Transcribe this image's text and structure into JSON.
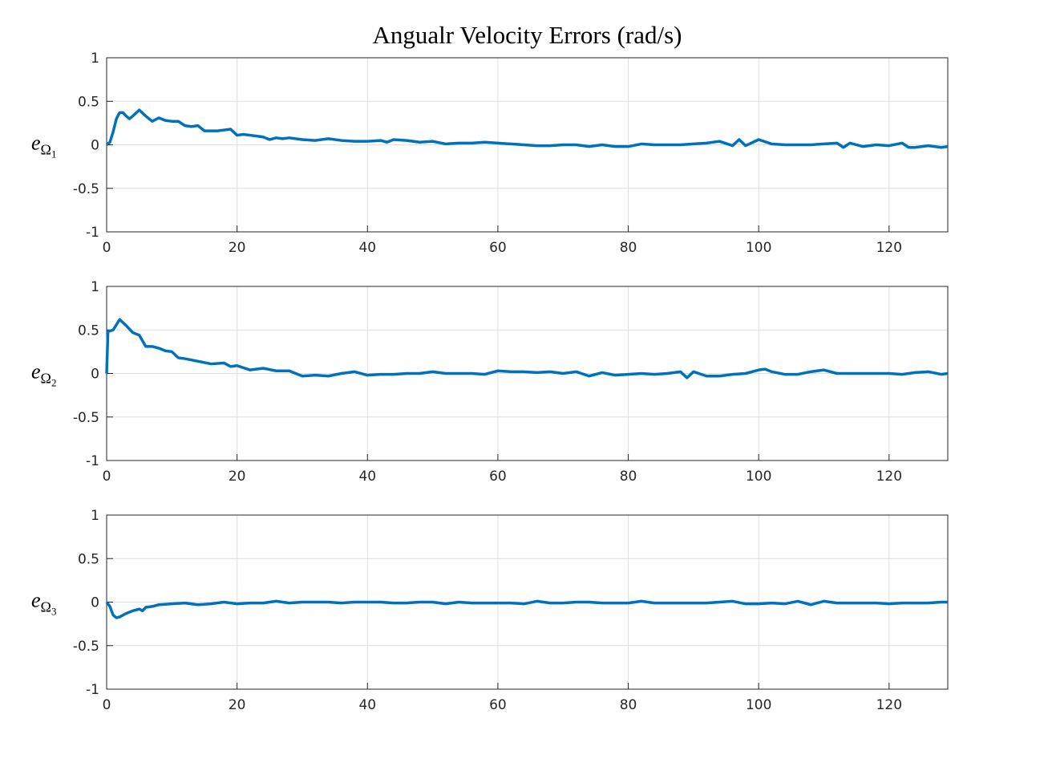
{
  "chart_data": [
    {
      "type": "line",
      "title": "Angualr Velocity Errors (rad/s)",
      "ylabel": [
        "e",
        "Ω",
        "1"
      ],
      "xlim": [
        0,
        129
      ],
      "ylim": [
        -1,
        1
      ],
      "xticks": [
        0,
        20,
        40,
        60,
        80,
        100,
        120
      ],
      "yticks": [
        -1,
        -0.5,
        0,
        0.5,
        1
      ],
      "grid": true,
      "x": [
        0,
        0.5,
        1,
        1.5,
        2,
        2.5,
        3,
        3.5,
        4,
        5,
        6,
        7,
        8,
        9,
        10,
        11,
        12,
        13,
        14,
        15,
        16,
        17,
        18,
        19,
        20,
        21,
        22,
        23,
        24,
        25,
        26,
        27,
        28,
        30,
        32,
        34,
        36,
        38,
        40,
        42,
        43,
        44,
        46,
        48,
        50,
        52,
        54,
        56,
        58,
        60,
        62,
        64,
        66,
        68,
        70,
        72,
        74,
        76,
        78,
        80,
        82,
        84,
        86,
        88,
        90,
        92,
        94,
        96,
        97,
        98,
        100,
        102,
        104,
        106,
        108,
        110,
        112,
        113,
        114,
        116,
        118,
        120,
        122,
        123,
        124,
        126,
        128,
        129
      ],
      "series": [
        {
          "color": "#0072bd",
          "values": [
            0,
            0.03,
            0.15,
            0.3,
            0.37,
            0.37,
            0.33,
            0.3,
            0.33,
            0.4,
            0.33,
            0.27,
            0.31,
            0.28,
            0.27,
            0.27,
            0.22,
            0.21,
            0.22,
            0.16,
            0.16,
            0.16,
            0.17,
            0.18,
            0.11,
            0.12,
            0.11,
            0.1,
            0.09,
            0.06,
            0.08,
            0.07,
            0.08,
            0.06,
            0.05,
            0.07,
            0.05,
            0.04,
            0.04,
            0.05,
            0.03,
            0.06,
            0.05,
            0.03,
            0.04,
            0.01,
            0.02,
            0.02,
            0.03,
            0.02,
            0.01,
            0.0,
            -0.01,
            -0.01,
            0.0,
            0.0,
            -0.02,
            0.0,
            -0.02,
            -0.02,
            0.01,
            0.0,
            0.0,
            0.0,
            0.01,
            0.02,
            0.04,
            -0.01,
            0.06,
            -0.01,
            0.06,
            0.01,
            0.0,
            0.0,
            0.0,
            0.01,
            0.02,
            -0.03,
            0.02,
            -0.02,
            0.0,
            -0.01,
            0.02,
            -0.03,
            -0.03,
            -0.01,
            -0.03,
            -0.02
          ]
        }
      ]
    },
    {
      "type": "line",
      "ylabel": [
        "e",
        "Ω",
        "2"
      ],
      "xlim": [
        0,
        129
      ],
      "ylim": [
        -1,
        1
      ],
      "xticks": [
        0,
        20,
        40,
        60,
        80,
        100,
        120
      ],
      "yticks": [
        -1,
        -0.5,
        0,
        0.5,
        1
      ],
      "grid": true,
      "x": [
        0,
        0.2,
        1,
        2,
        3,
        4,
        5,
        6,
        7,
        8,
        9,
        10,
        11,
        12,
        14,
        16,
        18,
        19,
        20,
        22,
        24,
        26,
        28,
        30,
        32,
        34,
        36,
        38,
        40,
        42,
        44,
        46,
        48,
        50,
        52,
        54,
        56,
        58,
        60,
        62,
        64,
        66,
        68,
        70,
        72,
        74,
        76,
        78,
        80,
        82,
        84,
        86,
        88,
        89,
        90,
        92,
        94,
        96,
        98,
        100,
        101,
        102,
        104,
        106,
        108,
        110,
        112,
        114,
        116,
        118,
        120,
        122,
        124,
        126,
        128,
        129
      ],
      "series": [
        {
          "color": "#0072bd",
          "values": [
            0,
            0.48,
            0.5,
            0.62,
            0.55,
            0.47,
            0.44,
            0.31,
            0.31,
            0.29,
            0.26,
            0.25,
            0.18,
            0.17,
            0.14,
            0.11,
            0.12,
            0.08,
            0.09,
            0.04,
            0.06,
            0.03,
            0.03,
            -0.03,
            -0.02,
            -0.03,
            0.0,
            0.02,
            -0.02,
            -0.01,
            -0.01,
            0.0,
            0.0,
            0.02,
            0.0,
            0.0,
            0.0,
            -0.01,
            0.03,
            0.02,
            0.02,
            0.01,
            0.02,
            0.0,
            0.02,
            -0.03,
            0.01,
            -0.02,
            -0.01,
            0.0,
            -0.01,
            0.0,
            0.02,
            -0.05,
            0.02,
            -0.03,
            -0.03,
            -0.01,
            0.0,
            0.04,
            0.05,
            0.02,
            -0.01,
            -0.01,
            0.02,
            0.04,
            0.0,
            0.0,
            0.0,
            0.0,
            0.0,
            -0.01,
            0.01,
            0.02,
            -0.01,
            0.0
          ]
        }
      ]
    },
    {
      "type": "line",
      "ylabel": [
        "e",
        "Ω",
        "3"
      ],
      "xlim": [
        0,
        129
      ],
      "ylim": [
        -1,
        1
      ],
      "xticks": [
        0,
        20,
        40,
        60,
        80,
        100,
        120
      ],
      "yticks": [
        -1,
        -0.5,
        0,
        0.5,
        1
      ],
      "grid": true,
      "x": [
        0,
        0.5,
        1,
        1.5,
        2,
        3,
        4,
        5,
        5.5,
        6,
        7,
        8,
        10,
        12,
        14,
        16,
        18,
        20,
        22,
        24,
        26,
        28,
        30,
        32,
        34,
        36,
        38,
        40,
        42,
        44,
        46,
        48,
        50,
        52,
        54,
        56,
        58,
        60,
        62,
        64,
        66,
        68,
        70,
        72,
        74,
        76,
        78,
        80,
        82,
        84,
        86,
        88,
        90,
        92,
        94,
        96,
        98,
        100,
        102,
        104,
        106,
        108,
        110,
        112,
        114,
        116,
        118,
        120,
        122,
        124,
        126,
        128,
        129
      ],
      "series": [
        {
          "color": "#0072bd",
          "values": [
            0,
            -0.05,
            -0.15,
            -0.18,
            -0.17,
            -0.13,
            -0.1,
            -0.08,
            -0.1,
            -0.06,
            -0.05,
            -0.03,
            -0.02,
            -0.01,
            -0.03,
            -0.02,
            0.0,
            -0.02,
            -0.01,
            -0.01,
            0.01,
            -0.01,
            0.0,
            0.0,
            0.0,
            -0.01,
            0.0,
            0.0,
            0.0,
            -0.01,
            -0.01,
            0.0,
            0.0,
            -0.02,
            0.0,
            -0.01,
            -0.01,
            -0.01,
            -0.01,
            -0.02,
            0.01,
            -0.01,
            -0.01,
            0.0,
            0.0,
            -0.01,
            -0.01,
            -0.01,
            0.01,
            -0.01,
            -0.01,
            -0.01,
            -0.01,
            -0.01,
            0.0,
            0.01,
            -0.02,
            -0.02,
            -0.01,
            -0.02,
            0.01,
            -0.03,
            0.01,
            -0.01,
            -0.01,
            -0.01,
            -0.01,
            -0.02,
            -0.01,
            -0.01,
            -0.01,
            0.0,
            0.0
          ]
        }
      ]
    }
  ]
}
